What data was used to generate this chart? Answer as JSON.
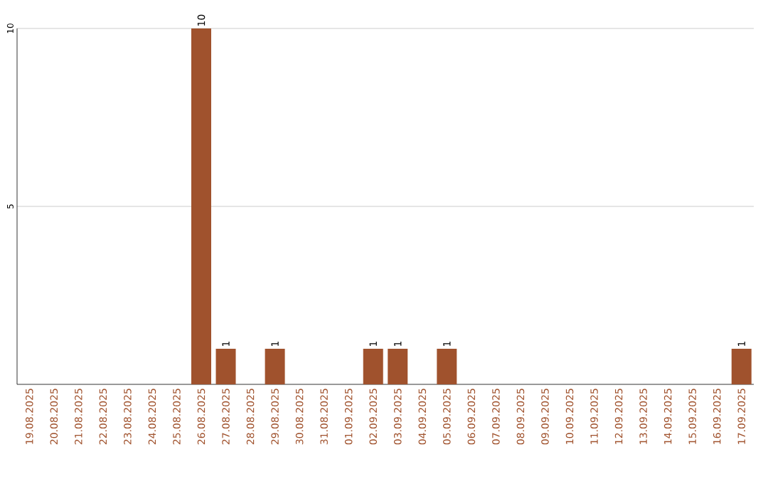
{
  "chart_data": {
    "type": "bar",
    "categories": [
      "19.08.2025",
      "20.08.2025",
      "21.08.2025",
      "22.08.2025",
      "23.08.2025",
      "24.08.2025",
      "25.08.2025",
      "26.08.2025",
      "27.08.2025",
      "28.08.2025",
      "29.08.2025",
      "30.08.2025",
      "31.08.2025",
      "01.09.2025",
      "02.09.2025",
      "03.09.2025",
      "04.09.2025",
      "05.09.2025",
      "06.09.2025",
      "07.09.2025",
      "08.09.2025",
      "09.09.2025",
      "10.09.2025",
      "11.09.2025",
      "12.09.2025",
      "13.09.2025",
      "14.09.2025",
      "15.09.2025",
      "16.09.2025",
      "17.09.2025"
    ],
    "values": [
      0,
      0,
      0,
      0,
      0,
      0,
      0,
      10,
      1,
      0,
      1,
      0,
      0,
      0,
      1,
      1,
      0,
      1,
      0,
      0,
      0,
      0,
      0,
      0,
      0,
      0,
      0,
      0,
      0,
      1
    ],
    "value_labels": [
      null,
      null,
      null,
      null,
      null,
      null,
      null,
      "10",
      "1",
      null,
      "1",
      null,
      null,
      null,
      "1",
      "1",
      null,
      "1",
      null,
      null,
      null,
      null,
      null,
      null,
      null,
      null,
      null,
      null,
      null,
      "1"
    ],
    "color": "#a0522d",
    "ylim": [
      0,
      10
    ],
    "yticks": [
      5,
      10
    ],
    "grid": "y"
  }
}
